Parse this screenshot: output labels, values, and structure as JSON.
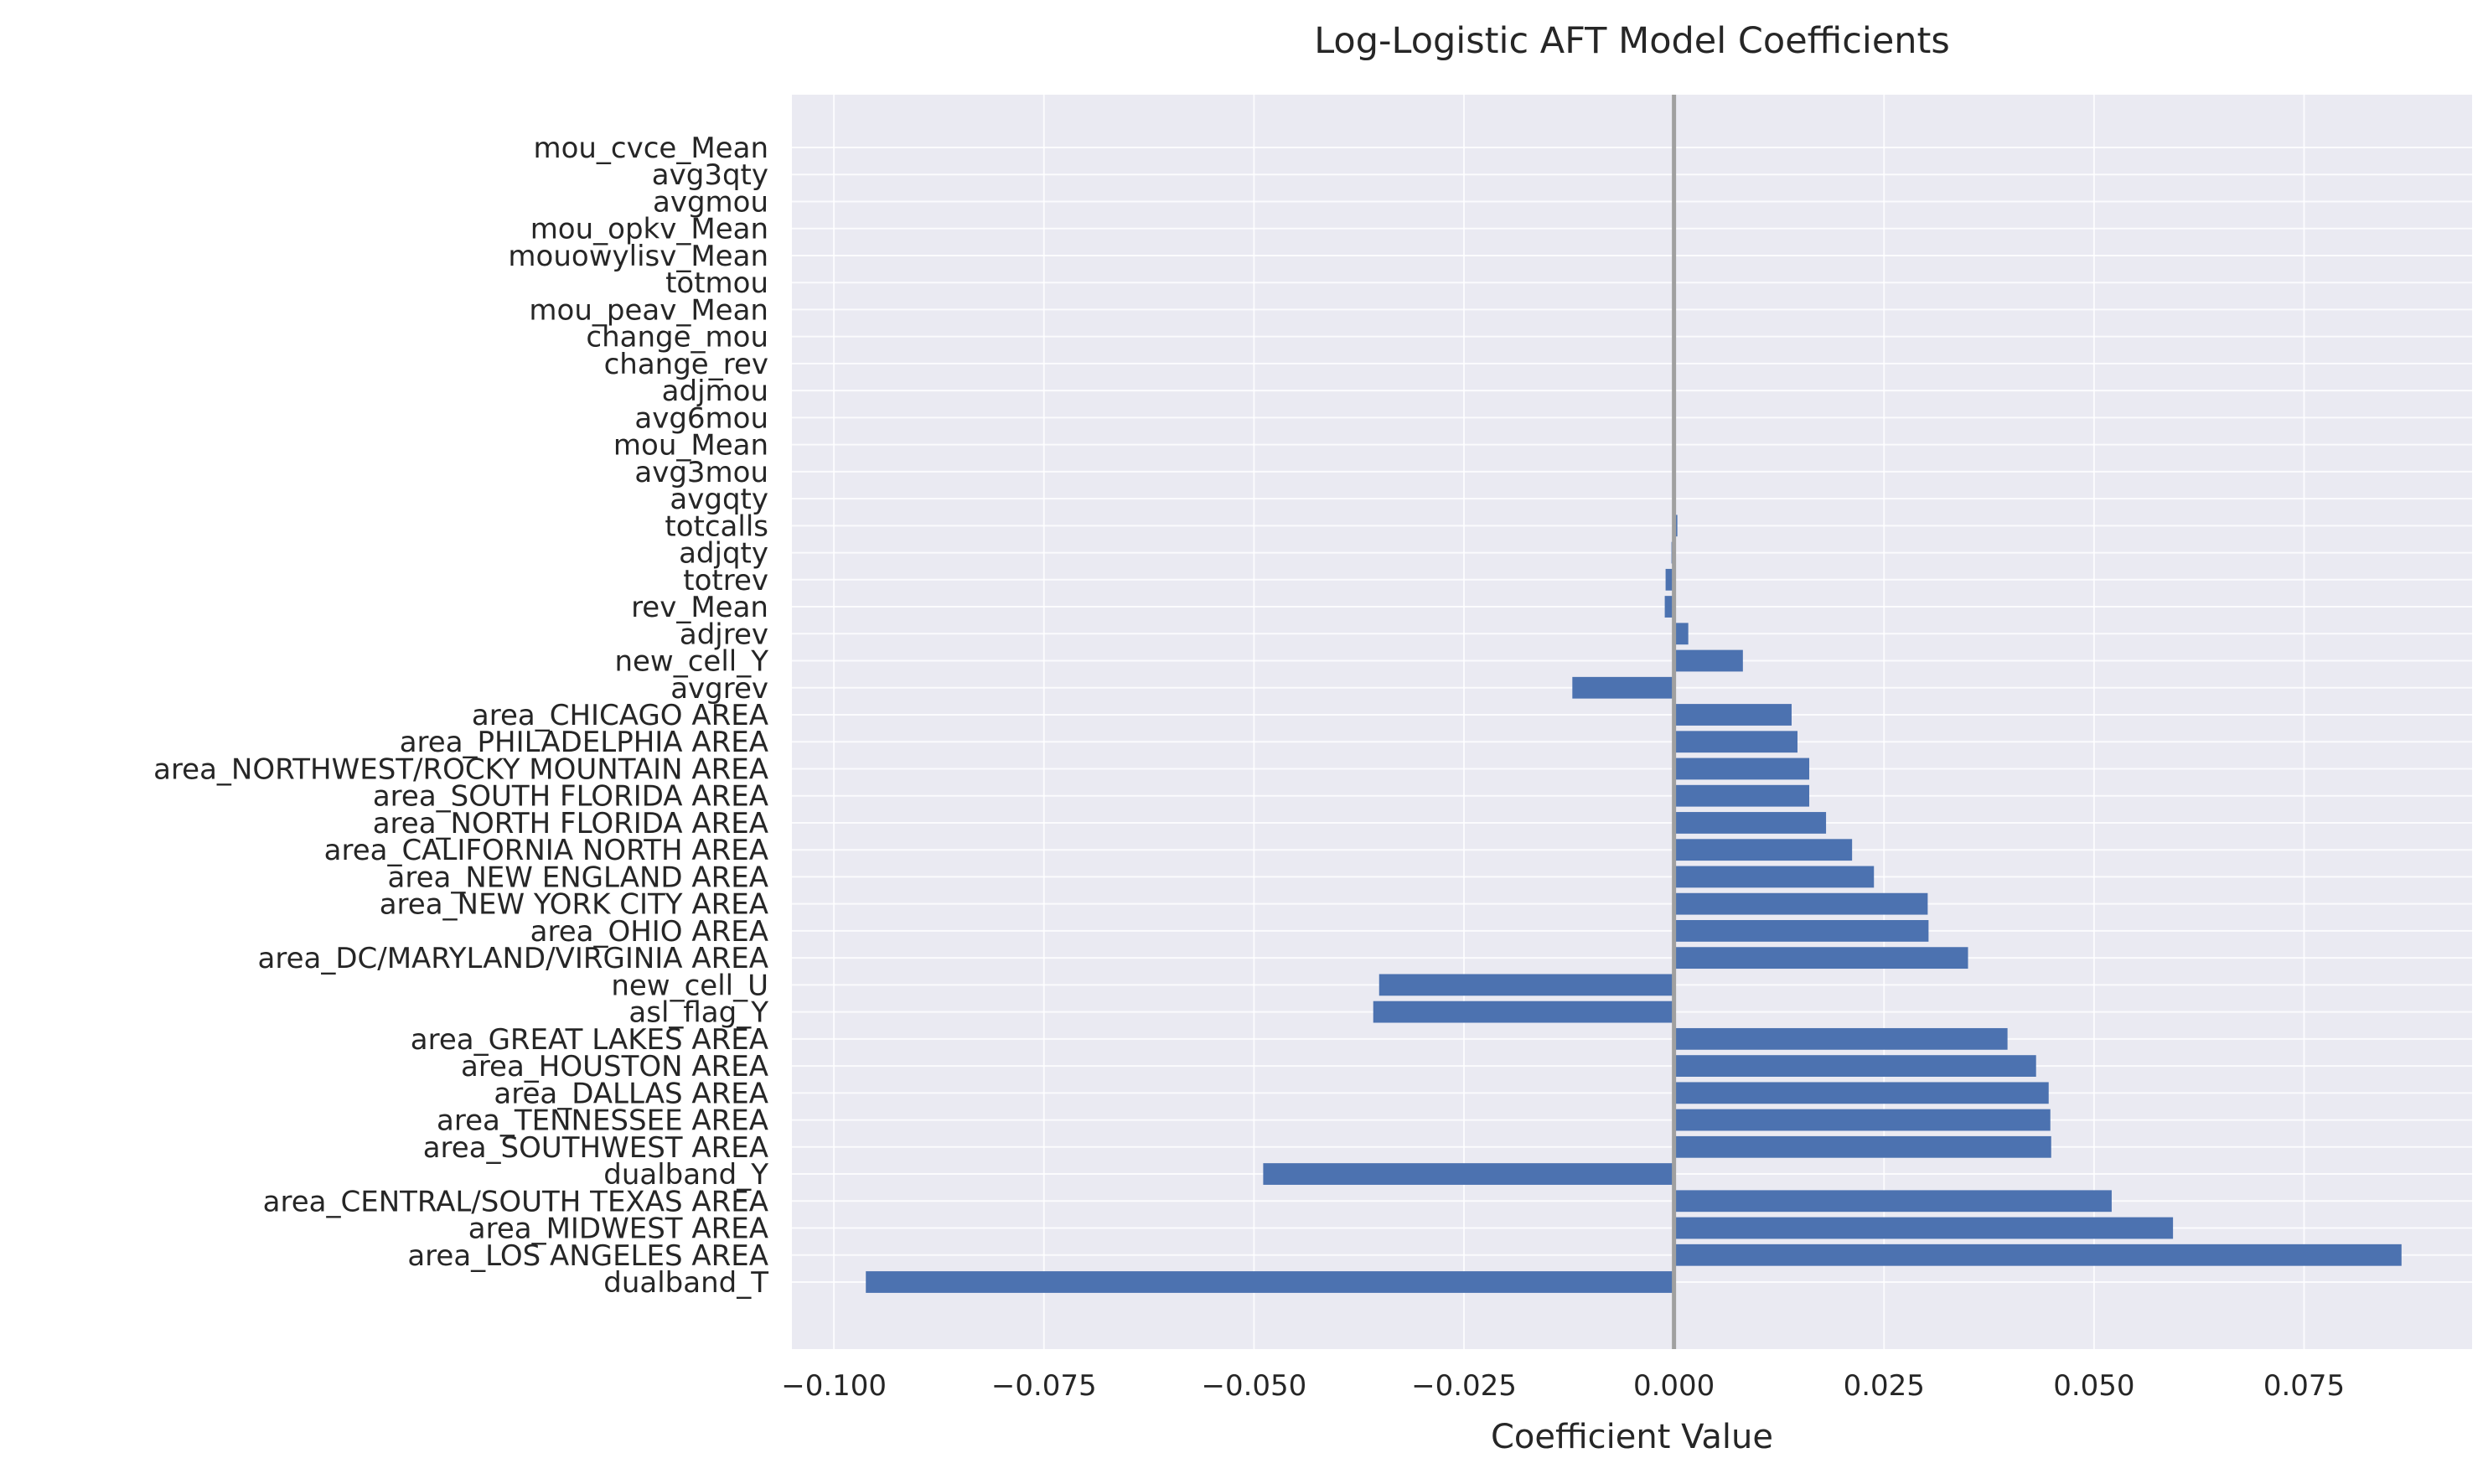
{
  "chart_data": {
    "type": "bar",
    "orientation": "horizontal",
    "title": "Log-Logistic AFT Model Coefficients",
    "xlabel": "Coefficient Value",
    "ylabel": "",
    "xlim": [
      -0.105,
      0.095
    ],
    "grid": true,
    "bar_color": "#4c72b0",
    "plot_background": "#eaeaf2",
    "grid_color": "#ffffff",
    "zero_line_color": "#a0a0a0",
    "x_ticks": [
      -0.1,
      -0.075,
      -0.05,
      -0.025,
      0.0,
      0.025,
      0.05,
      0.075
    ],
    "x_tick_labels": [
      "−0.100",
      "−0.075",
      "−0.050",
      "−0.025",
      "0.000",
      "0.025",
      "0.050",
      "0.075"
    ],
    "categories": [
      "dualband_T",
      "area_LOS ANGELES AREA",
      "area_MIDWEST AREA",
      "area_CENTRAL/SOUTH TEXAS AREA",
      "dualband_Y",
      "area_SOUTHWEST AREA",
      "area_TENNESSEE AREA",
      "area_DALLAS AREA",
      "area_HOUSTON AREA",
      "area_GREAT LAKES AREA",
      "asl_flag_Y",
      "new_cell_U",
      "area_DC/MARYLAND/VIRGINIA AREA",
      "area_OHIO AREA",
      "area_NEW YORK CITY AREA",
      "area_NEW ENGLAND AREA",
      "area_CALIFORNIA NORTH AREA",
      "area_NORTH FLORIDA AREA",
      "area_SOUTH FLORIDA AREA",
      "area_NORTHWEST/ROCKY MOUNTAIN AREA",
      "area_PHILADELPHIA AREA",
      "area_CHICAGO AREA",
      "avgrev",
      "new_cell_Y",
      "adjrev",
      "rev_Mean",
      "totrev",
      "adjqty",
      "totcalls",
      "avgqty",
      "avg3mou",
      "mou_Mean",
      "avg6mou",
      "adjmou",
      "change_rev",
      "change_mou",
      "mou_peav_Mean",
      "totmou",
      "mouowylisv_Mean",
      "mou_opkv_Mean",
      "avgmou",
      "avg3qty",
      "mou_cvce_Mean"
    ],
    "values": [
      -0.0962,
      0.0866,
      0.0594,
      0.0521,
      -0.0489,
      0.0449,
      0.0448,
      0.0446,
      0.0431,
      0.0397,
      -0.0358,
      -0.0351,
      0.035,
      0.0303,
      0.0302,
      0.0238,
      0.0212,
      0.0181,
      0.0161,
      0.0161,
      0.0147,
      0.014,
      -0.0121,
      0.0082,
      0.0017,
      -0.0011,
      -0.001,
      -0.0003,
      0.0004,
      0.0002,
      0.0002,
      -0.0002,
      0.0001,
      -0.0002,
      -0.0002,
      0.0001,
      0.0001,
      -0.0001,
      -0.0001,
      0.0001,
      -0.0001,
      0.0,
      0.0
    ]
  }
}
